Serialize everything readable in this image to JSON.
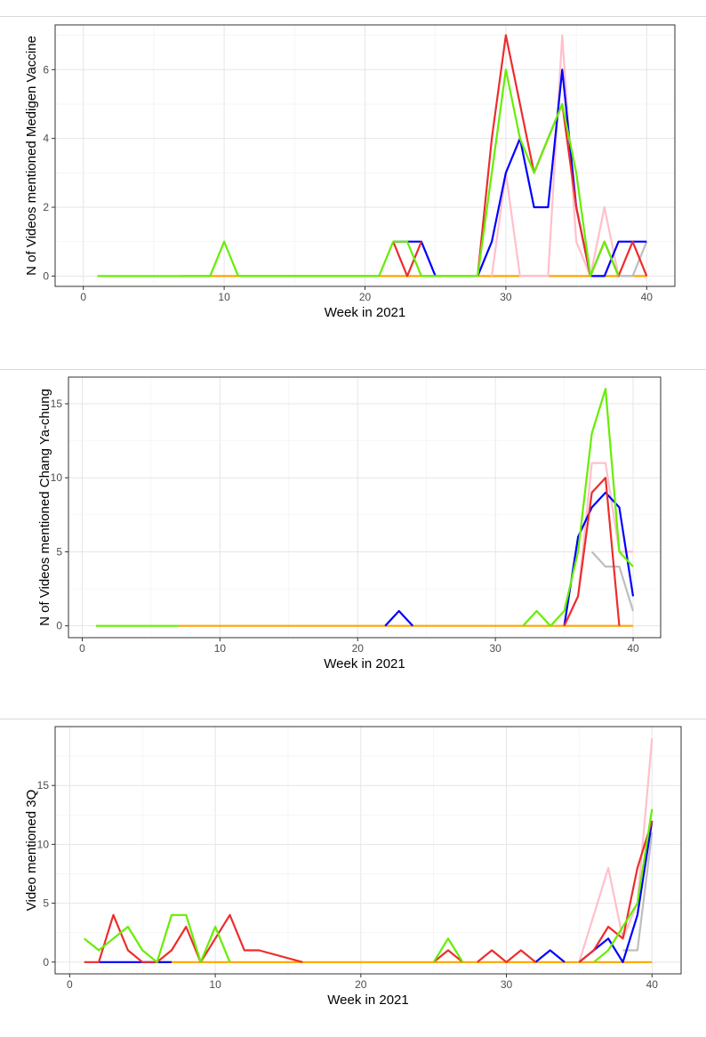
{
  "chart_data": [
    {
      "type": "line",
      "xlabel": "Week in 2021",
      "ylabel": "N of Videos mentioned Medigen Vaccine",
      "xlim": [
        -2,
        42
      ],
      "ylim": [
        -0.3,
        7.3
      ],
      "xticks": [
        0,
        10,
        20,
        30,
        40
      ],
      "yticks": [
        0,
        2,
        4,
        6
      ],
      "grid": true,
      "series": [
        {
          "name": "series-orange",
          "color": "#FFA500",
          "x": [
            7,
            40
          ],
          "y": [
            0,
            0
          ]
        },
        {
          "name": "series-grey",
          "color": "#BEBEBE",
          "x": [
            38,
            39,
            40
          ],
          "y": [
            0,
            0,
            1
          ]
        },
        {
          "name": "series-pink",
          "color": "#FFC0CB",
          "x": [
            29,
            30,
            31,
            32,
            33,
            34,
            35,
            36,
            37,
            38
          ],
          "y": [
            0,
            3,
            0,
            0,
            0,
            7,
            1,
            0,
            2,
            0
          ]
        },
        {
          "name": "series-blue",
          "color": "#0000FF",
          "x": [
            28,
            29,
            30,
            31,
            32,
            33,
            34,
            35,
            36,
            37,
            38,
            39,
            40,
            22,
            23,
            24,
            25
          ],
          "y": [
            0,
            1,
            3,
            4,
            2,
            2,
            6,
            2,
            0,
            0,
            1,
            1,
            1,
            null,
            1,
            1,
            0
          ],
          "segments": [
            {
              "x": [
                22,
                23,
                24,
                25
              ],
              "y": [
                1,
                1,
                1,
                0
              ]
            },
            {
              "x": [
                28,
                29,
                30,
                31,
                32,
                33,
                34,
                35,
                36,
                37,
                38,
                39,
                40
              ],
              "y": [
                0,
                1,
                3,
                4,
                2,
                2,
                6,
                2,
                0,
                0,
                1,
                1,
                1
              ]
            }
          ]
        },
        {
          "name": "series-red",
          "color": "#EE2C2C",
          "segments": [
            {
              "x": [
                22,
                23,
                24
              ],
              "y": [
                1,
                0,
                1
              ]
            },
            {
              "x": [
                28,
                29,
                30,
                31,
                32,
                33,
                34,
                35,
                36,
                37,
                38,
                39,
                40
              ],
              "y": [
                0,
                4,
                7,
                5,
                3,
                4,
                5,
                2,
                0,
                1,
                0,
                1,
                0
              ]
            }
          ]
        },
        {
          "name": "series-green",
          "color": "#66EE00",
          "segments": [
            {
              "x": [
                1,
                9,
                10,
                11,
                21,
                22,
                23,
                24,
                28,
                29,
                30,
                31,
                32,
                33,
                34,
                35,
                36,
                37,
                38
              ],
              "y": [
                0,
                0,
                1,
                0,
                0,
                1,
                1,
                0,
                0,
                3,
                6,
                4,
                3,
                4,
                5,
                3,
                0,
                1,
                0
              ]
            }
          ]
        }
      ]
    },
    {
      "type": "line",
      "xlabel": "Week in 2021",
      "ylabel": "N of Videos mentioned Chang Ya-chung",
      "xlim": [
        -1,
        42
      ],
      "ylim": [
        -0.8,
        16.8
      ],
      "xticks": [
        0,
        10,
        20,
        30,
        40
      ],
      "yticks": [
        0,
        5,
        10,
        15
      ],
      "grid": true,
      "series": [
        {
          "name": "series-orange",
          "color": "#FFA500",
          "segments": [
            {
              "x": [
                7,
                40
              ],
              "y": [
                0,
                0
              ]
            }
          ]
        },
        {
          "name": "series-grey",
          "color": "#BEBEBE",
          "segments": [
            {
              "x": [
                37,
                38,
                39,
                40
              ],
              "y": [
                5,
                4,
                4,
                1
              ]
            }
          ]
        },
        {
          "name": "series-pink",
          "color": "#FFC0CB",
          "segments": [
            {
              "x": [
                35,
                36,
                37,
                38,
                39,
                40
              ],
              "y": [
                0,
                2,
                11,
                11,
                5,
                5
              ]
            }
          ]
        },
        {
          "name": "series-blue",
          "color": "#0000FF",
          "segments": [
            {
              "x": [
                22,
                23,
                24
              ],
              "y": [
                0,
                1,
                0
              ]
            },
            {
              "x": [
                35,
                36,
                37,
                38,
                39,
                40
              ],
              "y": [
                0,
                6,
                8,
                9,
                8,
                2
              ]
            }
          ]
        },
        {
          "name": "series-red",
          "color": "#EE2C2C",
          "segments": [
            {
              "x": [
                35,
                36,
                37,
                38,
                39
              ],
              "y": [
                0,
                2,
                9,
                10,
                0
              ]
            }
          ]
        },
        {
          "name": "series-green",
          "color": "#66EE00",
          "segments": [
            {
              "x": [
                1,
                7
              ],
              "y": [
                0,
                0
              ]
            },
            {
              "x": [
                32,
                33,
                34,
                35,
                36,
                37,
                38,
                39,
                40
              ],
              "y": [
                0,
                1,
                0,
                1,
                5,
                13,
                16,
                5,
                4
              ]
            }
          ]
        }
      ]
    },
    {
      "type": "line",
      "xlabel": "Week in 2021",
      "ylabel": "Video mentioned 3Q",
      "xlim": [
        -1,
        42
      ],
      "ylim": [
        -1,
        20
      ],
      "xticks": [
        0,
        10,
        20,
        30,
        40
      ],
      "yticks": [
        0,
        5,
        10,
        15
      ],
      "grid": true,
      "series": [
        {
          "name": "series-orange",
          "color": "#FFA500",
          "segments": [
            {
              "x": [
                6,
                40
              ],
              "y": [
                0,
                0
              ]
            }
          ]
        },
        {
          "name": "series-grey",
          "color": "#BEBEBE",
          "segments": [
            {
              "x": [
                38,
                39,
                40
              ],
              "y": [
                1,
                1,
                11
              ]
            }
          ]
        },
        {
          "name": "series-pink",
          "color": "#FFC0CB",
          "segments": [
            {
              "x": [
                35,
                36,
                37,
                38,
                39,
                40
              ],
              "y": [
                0,
                4,
                8,
                2,
                5,
                19
              ]
            }
          ]
        },
        {
          "name": "series-blue",
          "color": "#0000FF",
          "segments": [
            {
              "x": [
                2,
                5,
                6,
                7
              ],
              "y": [
                0,
                0,
                0,
                0
              ]
            },
            {
              "x": [
                32,
                33,
                34
              ],
              "y": [
                0,
                1,
                0
              ]
            },
            {
              "x": [
                35,
                36,
                37,
                38,
                39,
                40
              ],
              "y": [
                0,
                1,
                2,
                0,
                4,
                12
              ]
            }
          ]
        },
        {
          "name": "series-red",
          "color": "#EE2C2C",
          "segments": [
            {
              "x": [
                1,
                2,
                3,
                4,
                5,
                6,
                7,
                8,
                9,
                10,
                11,
                12,
                13,
                16
              ],
              "y": [
                0,
                0,
                4,
                1,
                0,
                0,
                1,
                3,
                0,
                2,
                4,
                1,
                1,
                0
              ]
            },
            {
              "x": [
                25,
                26,
                27
              ],
              "y": [
                0,
                1,
                0
              ]
            },
            {
              "x": [
                28,
                29,
                30,
                31,
                32
              ],
              "y": [
                0,
                1,
                0,
                1,
                0
              ]
            },
            {
              "x": [
                35,
                36,
                37,
                38,
                39,
                40
              ],
              "y": [
                0,
                1,
                3,
                2,
                8,
                12
              ]
            }
          ]
        },
        {
          "name": "series-green",
          "color": "#66EE00",
          "segments": [
            {
              "x": [
                1,
                2,
                3,
                4,
                5,
                6,
                7,
                8,
                9,
                10,
                11
              ],
              "y": [
                2,
                1,
                2,
                3,
                1,
                0,
                4,
                4,
                0,
                3,
                0
              ]
            },
            {
              "x": [
                25,
                26,
                27
              ],
              "y": [
                0,
                2,
                0
              ]
            },
            {
              "x": [
                36,
                37,
                38,
                39,
                40
              ],
              "y": [
                0,
                1,
                3,
                5,
                13
              ]
            }
          ]
        }
      ]
    }
  ]
}
